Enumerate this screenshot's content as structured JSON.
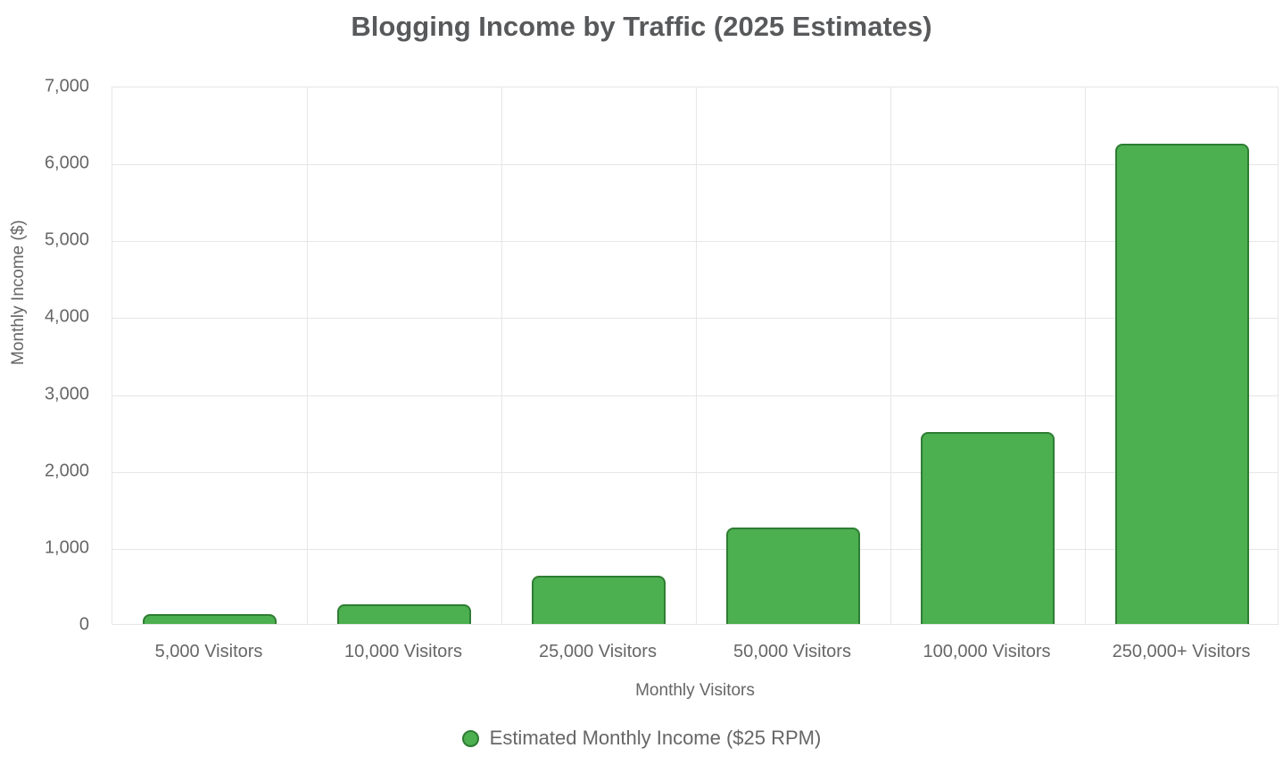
{
  "chart_data": {
    "type": "bar",
    "title": "Blogging Income by Traffic (2025 Estimates)",
    "categories": [
      "5,000 Visitors",
      "10,000 Visitors",
      "25,000 Visitors",
      "50,000 Visitors",
      "100,000 Visitors",
      "250,000+ Visitors"
    ],
    "values": [
      125,
      250,
      625,
      1250,
      2500,
      6250
    ],
    "series_name": "Estimated Monthly Income ($25 RPM)",
    "xlabel": "Monthly Visitors",
    "ylabel": "Monthly Income ($)",
    "ylim": [
      0,
      7000
    ],
    "ytick_step": 1000,
    "ytick_labels": [
      "0",
      "1,000",
      "2,000",
      "3,000",
      "4,000",
      "5,000",
      "6,000",
      "7,000"
    ],
    "grid": true,
    "legend_position": "bottom",
    "colors": {
      "bar_fill": "#4caf50",
      "bar_border": "#2f7d33",
      "grid": "#e6e6e6",
      "tick_text": "#666666",
      "title_text": "#58595b"
    }
  }
}
